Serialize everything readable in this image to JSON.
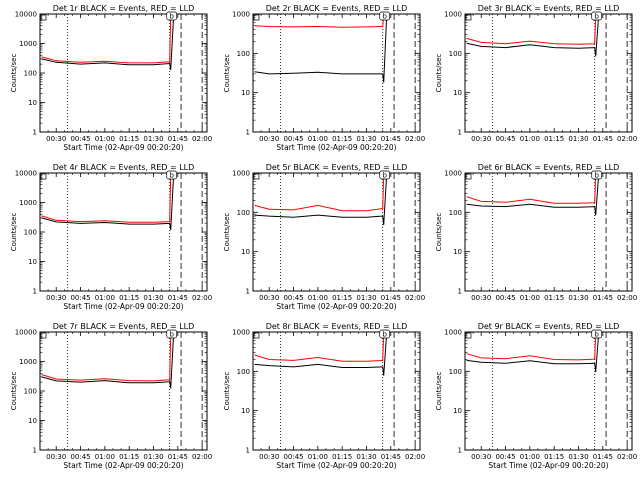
{
  "chart_data": [
    {
      "type": "line",
      "title": "Det 1r BLACK = Events, RED = LLD",
      "xlabel": "Start Time (02-Apr-09 00:20:20)",
      "ylabel": "Counts/sec",
      "yscale": "log",
      "ylim": [
        1,
        10000
      ],
      "y_ticks": [
        "1",
        "10",
        "100",
        "1000",
        "10000"
      ],
      "x_ticks": [
        "00:30",
        "00:45",
        "01:00",
        "01:15",
        "01:30",
        "01:45",
        "02:00"
      ],
      "xlim": [
        "00:20",
        "02:03"
      ],
      "vlines_dotted": [
        "00:37",
        "01:40"
      ],
      "vlines_dashed": [
        "01:47",
        "02:00"
      ],
      "marker_label": "b",
      "x": [
        "00:21",
        "00:30",
        "00:45",
        "01:00",
        "01:15",
        "01:30",
        "01:40"
      ],
      "series": [
        {
          "name": "Events",
          "color": "#000000",
          "values": [
            300,
            230,
            200,
            220,
            190,
            190,
            210
          ]
        },
        {
          "name": "LLD",
          "color": "#ff0000",
          "values": [
            350,
            260,
            230,
            250,
            220,
            220,
            240
          ]
        }
      ]
    },
    {
      "type": "line",
      "title": "Det 2r BLACK = Events, RED = LLD",
      "xlabel": "Start Time (02-Apr-09 00:20:20)",
      "ylabel": "Counts/sec",
      "yscale": "log",
      "ylim": [
        1,
        1000
      ],
      "y_ticks": [
        "1",
        "10",
        "100",
        "1000"
      ],
      "x_ticks": [
        "00:30",
        "00:45",
        "01:00",
        "01:15",
        "01:30",
        "01:45",
        "02:00"
      ],
      "xlim": [
        "00:20",
        "02:03"
      ],
      "vlines_dotted": [
        "00:37",
        "01:40"
      ],
      "vlines_dashed": [
        "01:47",
        "02:00"
      ],
      "marker_label": "b",
      "x": [
        "00:21",
        "00:30",
        "00:45",
        "01:00",
        "01:15",
        "01:30",
        "01:40"
      ],
      "series": [
        {
          "name": "Events",
          "color": "#000000",
          "values": [
            34,
            30,
            31,
            33,
            30,
            30,
            30
          ]
        },
        {
          "name": "LLD",
          "color": "#ff0000",
          "values": [
            500,
            480,
            470,
            480,
            460,
            470,
            480
          ]
        }
      ]
    },
    {
      "type": "line",
      "title": "Det 3r BLACK = Events, RED = LLD",
      "xlabel": "",
      "ylabel": "Counts/sec",
      "yscale": "log",
      "ylim": [
        1,
        1000
      ],
      "y_ticks": [
        "1",
        "10",
        "100",
        "1000"
      ],
      "x_ticks": [
        "00:30",
        "00:45",
        "01:00",
        "01:15",
        "01:30",
        "01:45",
        "02:00"
      ],
      "xlim": [
        "00:20",
        "02:03"
      ],
      "vlines_dotted": [
        "00:37",
        "01:40"
      ],
      "vlines_dashed": [
        "01:47",
        "02:00"
      ],
      "marker_label": "b",
      "x": [
        "00:21",
        "00:30",
        "00:45",
        "01:00",
        "01:15",
        "01:30",
        "01:40"
      ],
      "series": [
        {
          "name": "Events",
          "color": "#000000",
          "values": [
            180,
            150,
            140,
            165,
            140,
            135,
            140
          ]
        },
        {
          "name": "LLD",
          "color": "#ff0000",
          "values": [
            240,
            190,
            175,
            205,
            175,
            170,
            175
          ]
        }
      ]
    },
    {
      "type": "line",
      "title": "Det 4r BLACK = Events, RED = LLD",
      "xlabel": "Start Time (02-Apr-09 00:20:20)",
      "ylabel": "Counts/sec",
      "yscale": "log",
      "ylim": [
        1,
        10000
      ],
      "y_ticks": [
        "1",
        "10",
        "100",
        "1000",
        "10000"
      ],
      "x_ticks": [
        "00:30",
        "00:45",
        "01:00",
        "01:15",
        "01:30",
        "01:45",
        "02:00"
      ],
      "xlim": [
        "00:20",
        "02:03"
      ],
      "vlines_dotted": [
        "00:37",
        "01:40"
      ],
      "vlines_dashed": [
        "01:47",
        "02:00"
      ],
      "marker_label": "b",
      "x": [
        "00:21",
        "00:30",
        "00:45",
        "01:00",
        "01:15",
        "01:30",
        "01:40"
      ],
      "series": [
        {
          "name": "Events",
          "color": "#000000",
          "values": [
            300,
            220,
            195,
            210,
            185,
            185,
            195
          ]
        },
        {
          "name": "LLD",
          "color": "#ff0000",
          "values": [
            350,
            250,
            225,
            240,
            215,
            215,
            225
          ]
        }
      ]
    },
    {
      "type": "line",
      "title": "Det 5r BLACK = Events, RED = LLD",
      "xlabel": "Start Time (02-Apr-09 00:20:20)",
      "ylabel": "Counts/sec",
      "yscale": "log",
      "ylim": [
        1,
        1000
      ],
      "y_ticks": [
        "1",
        "10",
        "100",
        "1000"
      ],
      "x_ticks": [
        "00:30",
        "00:45",
        "01:00",
        "01:15",
        "01:30",
        "01:45",
        "02:00"
      ],
      "xlim": [
        "00:20",
        "02:03"
      ],
      "vlines_dotted": [
        "00:37",
        "01:40"
      ],
      "vlines_dashed": [
        "01:47",
        "02:00"
      ],
      "marker_label": "b",
      "x": [
        "00:21",
        "00:30",
        "00:45",
        "01:00",
        "01:15",
        "01:30",
        "01:40"
      ],
      "series": [
        {
          "name": "Events",
          "color": "#000000",
          "values": [
            85,
            80,
            75,
            85,
            75,
            75,
            80
          ]
        },
        {
          "name": "LLD",
          "color": "#ff0000",
          "values": [
            150,
            120,
            115,
            150,
            110,
            110,
            125
          ]
        }
      ]
    },
    {
      "type": "line",
      "title": "Det 6r BLACK = Events, RED = LLD",
      "xlabel": "",
      "ylabel": "Counts/sec",
      "yscale": "log",
      "ylim": [
        1,
        1000
      ],
      "y_ticks": [
        "1",
        "10",
        "100",
        "1000"
      ],
      "x_ticks": [
        "00:30",
        "00:45",
        "01:00",
        "01:15",
        "01:30",
        "01:45",
        "02:00"
      ],
      "xlim": [
        "00:20",
        "02:03"
      ],
      "vlines_dotted": [
        "00:37",
        "01:40"
      ],
      "vlines_dashed": [
        "01:47",
        "02:00"
      ],
      "marker_label": "b",
      "x": [
        "00:21",
        "00:30",
        "00:45",
        "01:00",
        "01:15",
        "01:30",
        "01:40"
      ],
      "series": [
        {
          "name": "Events",
          "color": "#000000",
          "values": [
            160,
            145,
            140,
            160,
            135,
            135,
            140
          ]
        },
        {
          "name": "LLD",
          "color": "#ff0000",
          "values": [
            250,
            190,
            180,
            215,
            170,
            170,
            175
          ]
        }
      ]
    },
    {
      "type": "line",
      "title": "Det 7r BLACK = Events, RED = LLD",
      "xlabel": "Start Time (02-Apr-09 00:20:20)",
      "ylabel": "Counts/sec",
      "yscale": "log",
      "ylim": [
        1,
        10000
      ],
      "y_ticks": [
        "1",
        "10",
        "100",
        "1000",
        "10000"
      ],
      "x_ticks": [
        "00:30",
        "00:45",
        "01:00",
        "01:15",
        "01:30",
        "01:45",
        "02:00"
      ],
      "xlim": [
        "00:20",
        "02:03"
      ],
      "vlines_dotted": [
        "00:37",
        "01:40"
      ],
      "vlines_dashed": [
        "01:47",
        "02:00"
      ],
      "marker_label": "b",
      "x": [
        "00:21",
        "00:30",
        "00:45",
        "01:00",
        "01:15",
        "01:30",
        "01:40"
      ],
      "series": [
        {
          "name": "Events",
          "color": "#000000",
          "values": [
            300,
            220,
            200,
            225,
            190,
            190,
            205
          ]
        },
        {
          "name": "LLD",
          "color": "#ff0000",
          "values": [
            360,
            255,
            235,
            260,
            225,
            220,
            240
          ]
        }
      ]
    },
    {
      "type": "line",
      "title": "Det 8r BLACK = Events, RED = LLD",
      "xlabel": "Start Time (02-Apr-09 00:20:20)",
      "ylabel": "Counts/sec",
      "yscale": "log",
      "ylim": [
        1,
        1000
      ],
      "y_ticks": [
        "1",
        "10",
        "100",
        "1000"
      ],
      "x_ticks": [
        "00:30",
        "00:45",
        "01:00",
        "01:15",
        "01:30",
        "01:45",
        "02:00"
      ],
      "xlim": [
        "00:20",
        "02:03"
      ],
      "vlines_dotted": [
        "00:37",
        "01:40"
      ],
      "vlines_dashed": [
        "01:47",
        "02:00"
      ],
      "marker_label": "b",
      "x": [
        "00:21",
        "00:30",
        "00:45",
        "01:00",
        "01:15",
        "01:30",
        "01:40"
      ],
      "series": [
        {
          "name": "Events",
          "color": "#000000",
          "values": [
            150,
            140,
            130,
            150,
            125,
            125,
            130
          ]
        },
        {
          "name": "LLD",
          "color": "#ff0000",
          "values": [
            260,
            200,
            190,
            225,
            180,
            180,
            190
          ]
        }
      ]
    },
    {
      "type": "line",
      "title": "Det 9r BLACK = Events, RED = LLD",
      "xlabel": "Start Time (02-Apr-09 00:20:20)",
      "ylabel": "Counts/sec",
      "yscale": "log",
      "ylim": [
        1,
        1000
      ],
      "y_ticks": [
        "1",
        "10",
        "100",
        "1000"
      ],
      "x_ticks": [
        "00:30",
        "00:45",
        "01:00",
        "01:15",
        "01:30",
        "01:45",
        "02:00"
      ],
      "xlim": [
        "00:20",
        "02:03"
      ],
      "vlines_dotted": [
        "00:37",
        "01:40"
      ],
      "vlines_dashed": [
        "01:47",
        "02:00"
      ],
      "marker_label": "b",
      "x": [
        "00:21",
        "00:30",
        "00:45",
        "01:00",
        "01:15",
        "01:30",
        "01:40"
      ],
      "series": [
        {
          "name": "Events",
          "color": "#000000",
          "values": [
            190,
            170,
            160,
            185,
            155,
            155,
            160
          ]
        },
        {
          "name": "LLD",
          "color": "#ff0000",
          "values": [
            280,
            220,
            210,
            250,
            200,
            195,
            205
          ]
        }
      ]
    }
  ]
}
